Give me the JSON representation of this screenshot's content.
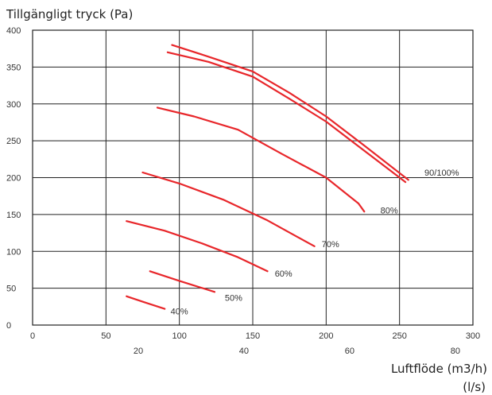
{
  "chart_data": {
    "type": "line",
    "ylabel": "Tillgängligt tryck  (Pa)",
    "xlabel": "Luftflöde (m3/h)",
    "xlabel_secondary": "(l/s)",
    "xlim": [
      0,
      300
    ],
    "ylim": [
      0,
      400
    ],
    "x_ticks": [
      0,
      50,
      100,
      150,
      200,
      250,
      300
    ],
    "y_ticks": [
      0,
      50,
      100,
      150,
      200,
      250,
      300,
      350,
      400
    ],
    "x_ticks_secondary": [
      20,
      40,
      60,
      80
    ],
    "grid": true,
    "series": [
      {
        "name": "90/100%",
        "color": "#e8262a",
        "x": [
          95,
          120,
          150,
          175,
          200,
          225,
          256
        ],
        "y": [
          380,
          364,
          344,
          315,
          283,
          245,
          197
        ]
      },
      {
        "name": "",
        "color": "#e8262a",
        "x": [
          92,
          120,
          150,
          175,
          200,
          225,
          254
        ],
        "y": [
          370,
          357,
          337,
          307,
          276,
          238,
          194
        ]
      },
      {
        "name": "80%",
        "color": "#e8262a",
        "x": [
          85,
          110,
          140,
          170,
          200,
          222,
          226
        ],
        "y": [
          295,
          283,
          265,
          232,
          200,
          165,
          154
        ]
      },
      {
        "name": "70%",
        "color": "#e8262a",
        "x": [
          75,
          100,
          130,
          160,
          180,
          192
        ],
        "y": [
          207,
          192,
          170,
          142,
          120,
          107
        ]
      },
      {
        "name": "60%",
        "color": "#e8262a",
        "x": [
          64,
          90,
          115,
          140,
          160
        ],
        "y": [
          141,
          128,
          111,
          92,
          73
        ]
      },
      {
        "name": "50%",
        "color": "#e8262a",
        "x": [
          80,
          100,
          124
        ],
        "y": [
          73,
          60,
          45
        ]
      },
      {
        "name": "40%",
        "color": "#e8262a",
        "x": [
          64,
          76,
          90
        ],
        "y": [
          39,
          31,
          22
        ]
      }
    ],
    "annotations": [
      {
        "text": "90/100%",
        "x": 267,
        "y": 207
      },
      {
        "text": "80%",
        "x": 237,
        "y": 156
      },
      {
        "text": "70%",
        "x": 197,
        "y": 110
      },
      {
        "text": "60%",
        "x": 165,
        "y": 70
      },
      {
        "text": "50%",
        "x": 131,
        "y": 37
      },
      {
        "text": "40%",
        "x": 94,
        "y": 19
      }
    ]
  }
}
